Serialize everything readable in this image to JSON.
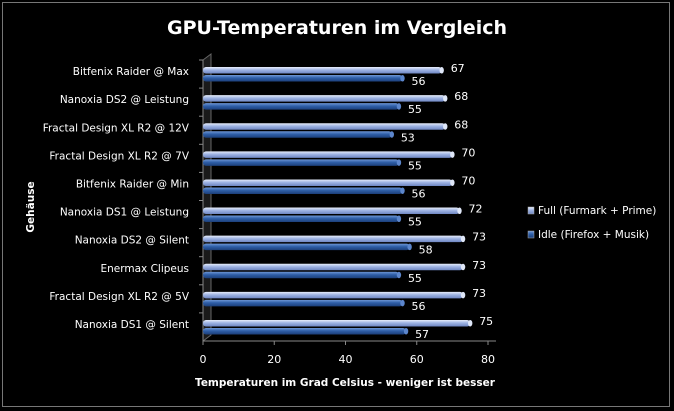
{
  "chart_data": {
    "type": "bar",
    "orientation": "horizontal",
    "title": "GPU-Temperaturen im Vergleich",
    "xlabel": "Temperaturen im Grad Celsius - weniger ist besser",
    "ylabel": "Gehäuse",
    "xlim": [
      0,
      80
    ],
    "xticks": [
      "0",
      "20",
      "40",
      "60",
      "80"
    ],
    "grid": false,
    "legend_position": "right",
    "categories": [
      "Bitfenix Raider @ Max",
      "Nanoxia DS2 @ Leistung",
      "Fractal Design XL R2 @ 12V",
      "Fractal Design XL R2 @ 7V",
      "Bitfenix Raider @ Min",
      "Nanoxia DS1 @ Leistung",
      "Nanoxia DS2 @ Silent",
      "Enermax Clipeus",
      "Fractal Design XL R2 @ 5V",
      "Nanoxia DS1 @ Silent"
    ],
    "series": [
      {
        "name": "Full (Furmark + Prime)",
        "color": "#9fb4e4",
        "values": [
          67,
          68,
          68,
          70,
          70,
          72,
          73,
          73,
          73,
          75
        ]
      },
      {
        "name": "Idle (Firefox + Musik)",
        "color": "#2f5fa8",
        "values": [
          56,
          55,
          53,
          55,
          56,
          55,
          58,
          55,
          56,
          57
        ]
      }
    ]
  }
}
